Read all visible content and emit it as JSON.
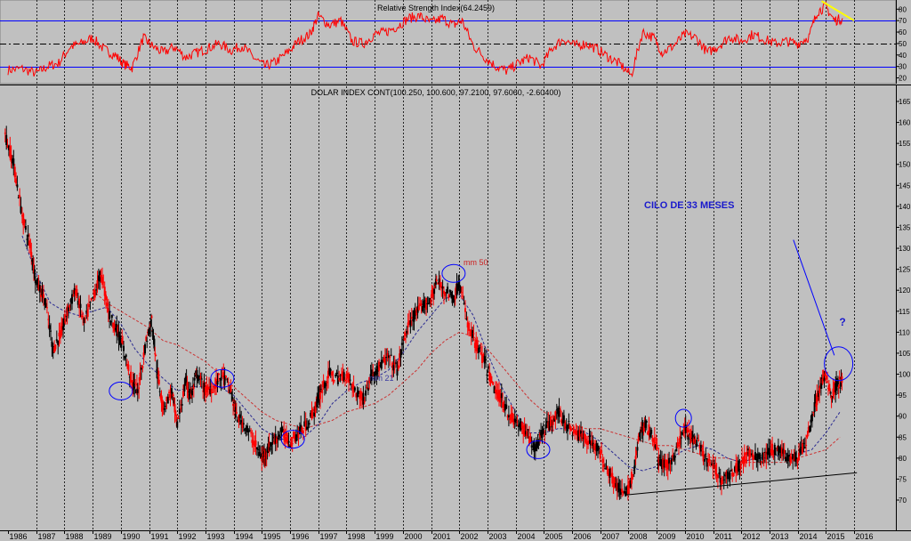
{
  "chart_data": [
    {
      "type": "line",
      "title": "Relative Strength Index(64.2459)",
      "ylim": [
        15,
        88
      ],
      "yticks": [
        20,
        30,
        40,
        50,
        60,
        70,
        80
      ],
      "reference_lines": [
        70,
        50,
        30
      ],
      "grid": true,
      "series": [
        {
          "color": "#ff0000",
          "x": [
            1986.0,
            1986.5,
            1987.0,
            1987.4,
            1987.8,
            1988.2,
            1988.6,
            1989.0,
            1989.4,
            1989.8,
            1990.1,
            1990.4,
            1990.8,
            1991.1,
            1991.5,
            1991.9,
            1992.3,
            1992.7,
            1993.1,
            1993.5,
            1993.9,
            1994.3,
            1994.7,
            1995.1,
            1995.5,
            1995.9,
            1996.3,
            1996.7,
            1997.0,
            1997.4,
            1997.8,
            1998.2,
            1998.6,
            1999.0,
            1999.4,
            1999.8,
            2000.2,
            2000.6,
            2001.0,
            2001.4,
            2001.8,
            2002.1,
            2002.5,
            2002.9,
            2003.3,
            2003.7,
            2004.1,
            2004.5,
            2004.9,
            2005.3,
            2005.7,
            2006.1,
            2006.5,
            2006.9,
            2007.3,
            2007.7,
            2008.1,
            2008.5,
            2008.9,
            2009.2,
            2009.6,
            2010.0,
            2010.4,
            2010.8,
            2011.2,
            2011.6,
            2012.0,
            2012.4,
            2012.8,
            2013.2,
            2013.6,
            2014.0,
            2014.4,
            2014.7,
            2015.0,
            2015.3,
            2015.6
          ],
          "values": [
            27,
            28,
            24,
            30,
            33,
            47,
            50,
            55,
            45,
            40,
            32,
            29,
            55,
            48,
            42,
            47,
            38,
            42,
            46,
            50,
            44,
            48,
            38,
            30,
            34,
            42,
            52,
            58,
            74,
            66,
            70,
            52,
            50,
            58,
            60,
            65,
            72,
            74,
            68,
            72,
            66,
            70,
            48,
            38,
            30,
            26,
            33,
            38,
            30,
            46,
            54,
            48,
            50,
            45,
            38,
            32,
            22,
            60,
            55,
            42,
            48,
            58,
            55,
            42,
            48,
            56,
            52,
            58,
            54,
            50,
            52,
            50,
            56,
            78,
            82,
            70,
            72
          ]
        }
      ],
      "annotations": [
        {
          "type": "trendline",
          "color": "#ffff00",
          "x": [
            2014.85,
            2016.0
          ],
          "y": [
            87,
            70
          ]
        }
      ]
    },
    {
      "type": "candlestick",
      "title": "DOLAR INDEX CONT(100.250, 100.600, 97.2100, 97.6060, -2.60400)",
      "ylim": [
        68,
        167
      ],
      "yticks": [
        70,
        75,
        80,
        85,
        90,
        95,
        100,
        105,
        110,
        115,
        120,
        125,
        130,
        135,
        140,
        145,
        150,
        155,
        160,
        165
      ],
      "x_categories": [
        "1986",
        "1987",
        "1988",
        "1989",
        "1990",
        "1991",
        "1992",
        "1993",
        "1994",
        "1995",
        "1996",
        "1997",
        "1998",
        "1999",
        "2000",
        "2001",
        "2002",
        "2003",
        "2004",
        "2005",
        "2006",
        "2007",
        "2008",
        "2009",
        "2010",
        "2011",
        "2012",
        "2013",
        "2014",
        "2015",
        "2016"
      ],
      "grid": true,
      "price": {
        "x": [
          1985.9,
          1986.2,
          1986.5,
          1986.8,
          1987.0,
          1987.3,
          1987.6,
          1987.9,
          1988.1,
          1988.4,
          1988.7,
          1989.0,
          1989.3,
          1989.6,
          1989.9,
          1990.1,
          1990.4,
          1990.6,
          1990.9,
          1991.1,
          1991.3,
          1991.5,
          1991.8,
          1992.0,
          1992.3,
          1992.5,
          1992.7,
          1993.0,
          1993.3,
          1993.6,
          1993.9,
          1994.1,
          1994.4,
          1994.7,
          1995.0,
          1995.2,
          1995.4,
          1995.7,
          1996.0,
          1996.3,
          1996.6,
          1996.9,
          1997.1,
          1997.4,
          1997.7,
          1998.0,
          1998.3,
          1998.6,
          1998.9,
          1999.2,
          1999.5,
          1999.8,
          2000.1,
          2000.4,
          2000.7,
          2001.0,
          2001.2,
          2001.5,
          2001.8,
          2002.0,
          2002.3,
          2002.6,
          2002.9,
          2003.2,
          2003.5,
          2003.8,
          2004.1,
          2004.4,
          2004.7,
          2004.9,
          2005.2,
          2005.5,
          2005.8,
          2006.1,
          2006.4,
          2006.7,
          2007.0,
          2007.3,
          2007.6,
          2007.9,
          2008.2,
          2008.4,
          2008.6,
          2008.9,
          2009.1,
          2009.4,
          2009.7,
          2010.0,
          2010.2,
          2010.4,
          2010.7,
          2011.0,
          2011.3,
          2011.6,
          2011.9,
          2012.2,
          2012.5,
          2012.8,
          2013.1,
          2013.4,
          2013.7,
          2014.0,
          2014.3,
          2014.6,
          2014.8,
          2015.0,
          2015.2,
          2015.4,
          2015.6
        ],
        "y": [
          157,
          150,
          138,
          130,
          122,
          118,
          106,
          110,
          115,
          120,
          112,
          118,
          124,
          114,
          110,
          106,
          98,
          96,
          108,
          113,
          100,
          92,
          96,
          88,
          98,
          95,
          100,
          96,
          97,
          100,
          96,
          90,
          88,
          84,
          80,
          82,
          84,
          86,
          84,
          86,
          88,
          92,
          96,
          100,
          99,
          100,
          96,
          94,
          100,
          102,
          104,
          101,
          110,
          114,
          116,
          118,
          122,
          120,
          118,
          122,
          112,
          107,
          103,
          97,
          94,
          90,
          88,
          86,
          82,
          86,
          88,
          91,
          88,
          86,
          85,
          84,
          81,
          77,
          73,
          71,
          77,
          86,
          88,
          85,
          79,
          78,
          82,
          87,
          85,
          84,
          80,
          78,
          75,
          76,
          78,
          81,
          80,
          80,
          82,
          82,
          80,
          80,
          84,
          92,
          97,
          100,
          95,
          98,
          98
        ]
      },
      "ma21": {
        "color": "#2a2a90",
        "label": "mm 21",
        "x": [
          1986.5,
          1987.0,
          1987.5,
          1988.0,
          1988.5,
          1989.0,
          1989.5,
          1990.0,
          1990.5,
          1991.0,
          1991.5,
          1992.0,
          1992.5,
          1993.0,
          1993.5,
          1994.0,
          1994.5,
          1995.0,
          1995.5,
          1996.0,
          1996.5,
          1997.0,
          1997.5,
          1998.0,
          1998.5,
          1999.0,
          1999.5,
          2000.0,
          2000.5,
          2001.0,
          2001.5,
          2002.0,
          2002.5,
          2003.0,
          2003.5,
          2004.0,
          2004.5,
          2005.0,
          2005.5,
          2006.0,
          2006.5,
          2007.0,
          2007.5,
          2008.0,
          2008.5,
          2009.0,
          2009.5,
          2010.0,
          2010.5,
          2011.0,
          2011.5,
          2012.0,
          2012.5,
          2013.0,
          2013.5,
          2014.0,
          2014.5,
          2015.0,
          2015.5
        ],
        "y": [
          133,
          124,
          117,
          115,
          114,
          115,
          116,
          112,
          106,
          102,
          99,
          96,
          97,
          97,
          97,
          95,
          91,
          87,
          85,
          84,
          85,
          88,
          93,
          96,
          98,
          99,
          101,
          105,
          110,
          114,
          118,
          119,
          114,
          105,
          97,
          91,
          86,
          86,
          87,
          87,
          86,
          84,
          81,
          78,
          77,
          78,
          80,
          82,
          83,
          82,
          80,
          79,
          80,
          80,
          81,
          81,
          82,
          86,
          91
        ]
      },
      "ma50": {
        "color": "#cc3333",
        "label": "mm 50",
        "x": [
          1989.0,
          1989.5,
          1990.0,
          1990.5,
          1991.0,
          1991.5,
          1992.0,
          1992.5,
          1993.0,
          1993.5,
          1994.0,
          1994.5,
          1995.0,
          1995.5,
          1996.0,
          1996.5,
          1997.0,
          1997.5,
          1998.0,
          1998.5,
          1999.0,
          1999.5,
          2000.0,
          2000.5,
          2001.0,
          2001.5,
          2002.0,
          2002.5,
          2003.0,
          2003.5,
          2004.0,
          2004.5,
          2005.0,
          2005.5,
          2006.0,
          2006.5,
          2007.0,
          2007.5,
          2008.0,
          2008.5,
          2009.0,
          2009.5,
          2010.0,
          2010.5,
          2011.0,
          2011.5,
          2012.0,
          2012.5,
          2013.0,
          2013.5,
          2014.0,
          2014.5,
          2015.0,
          2015.5
        ],
        "y": [
          120,
          117,
          115,
          113,
          111,
          108,
          107,
          105,
          103,
          100,
          97,
          94,
          91,
          89,
          88,
          87,
          88,
          89,
          91,
          92,
          93,
          95,
          98,
          101,
          105,
          108,
          110,
          109,
          106,
          102,
          98,
          94,
          91,
          89,
          88,
          87,
          87,
          86,
          85,
          84,
          83,
          83,
          82,
          81,
          80,
          80,
          79,
          79,
          79,
          79,
          80,
          81,
          82,
          85
        ]
      },
      "annotations": {
        "cycle_label": "CILO DE 33 MESES",
        "question_mark": "?",
        "circles": [
          {
            "x": 1990.0,
            "y": 96
          },
          {
            "x": 1993.6,
            "y": 99
          },
          {
            "x": 1996.1,
            "y": 84.5
          },
          {
            "x": 2001.8,
            "y": 124
          },
          {
            "x": 2004.8,
            "y": 82
          },
          {
            "x": 2009.95,
            "y": 89.5
          },
          {
            "x": 2015.45,
            "y": 102.5
          }
        ],
        "arrow": {
          "from": {
            "x": 2013.85,
            "y": 132
          },
          "to": {
            "x": 2015.3,
            "y": 104.5
          }
        },
        "support_line": {
          "x": [
            2007.9,
            2016.1
          ],
          "y": [
            71.2,
            76.5
          ]
        }
      }
    }
  ]
}
